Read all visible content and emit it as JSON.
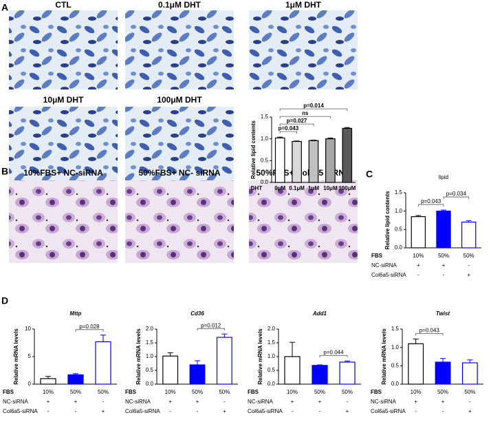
{
  "panel_labels": [
    "A",
    "B",
    "C",
    "D"
  ],
  "images": {
    "a": [
      "CTL",
      "0.1μM DHT",
      "1μM DHT",
      "10μM DHT",
      "100μM DHT"
    ],
    "b": [
      "10%FBS+ NC-siRNA",
      "50%FBS+ NC- siRNA",
      "50%FBS+ Col6a5 siRNA"
    ]
  },
  "chart_data": [
    {
      "type": "bar",
      "y_label": "Relative lipid contents",
      "x_label": "DHT",
      "categories": [
        "0μM",
        "0.1μM",
        "1μM",
        "10μM",
        "100μM"
      ],
      "values": [
        1.02,
        0.94,
        0.96,
        1.0,
        1.24
      ],
      "errors": [
        0.02,
        0.01,
        0.01,
        0.02,
        0.02
      ],
      "bar_fills": [
        "#ffffff",
        "#d9d9d9",
        "#bfbfbf",
        "#a6a6a6",
        "#595959"
      ],
      "bar_edges": [
        "#000000",
        "#000000",
        "#000000",
        "#000000",
        "#000000"
      ],
      "ylim": [
        0,
        1.5
      ],
      "yticks": [
        {
          "value": 0,
          "label": "0.0"
        },
        0.5,
        {
          "value": 1,
          "label": "1.0"
        },
        1.5
      ],
      "annotations": [
        {
          "text": "p=0.043",
          "from": 0,
          "to": 1
        },
        {
          "text": "p=0.027",
          "from": 0,
          "to": 2
        },
        {
          "text": "ns",
          "from": 0,
          "to": 3
        },
        {
          "text": "p=0.014",
          "from": 0,
          "to": 4
        }
      ]
    },
    {
      "type": "bar",
      "title": "lipid",
      "y_label": "Relative lipid contents",
      "values": [
        0.85,
        1.0,
        0.7
      ],
      "errors": [
        0.03,
        0.03,
        0.04
      ],
      "bar_fills": [
        "#ffffff",
        "#0000ff",
        "#ffffff"
      ],
      "bar_edges": [
        "#000000",
        "#0000ff",
        "#0000ff"
      ],
      "ylim": [
        0,
        1.5
      ],
      "yticks": [
        {
          "value": 0,
          "label": "0.0"
        },
        0.5,
        {
          "value": 1,
          "label": "1.0"
        },
        1.5
      ],
      "annotations": [
        {
          "text": "p=0.043",
          "from": 0,
          "to": 1
        },
        {
          "text": "p=0.034",
          "from": 1,
          "to": 2
        }
      ],
      "conditions": [
        {
          "name": "FBS",
          "values": [
            "10%",
            "50%",
            "50%"
          ]
        },
        {
          "name": "NC-siRNA",
          "values": [
            "+",
            "+",
            "-"
          ]
        },
        {
          "name": "Col6a5-siRNA",
          "values": [
            "-",
            "-",
            "+"
          ]
        }
      ]
    },
    {
      "type": "bar",
      "title": "Mttp",
      "y_label": "Relative mRNA levels",
      "values": [
        1.0,
        1.7,
        7.7
      ],
      "errors": [
        0.4,
        0.2,
        1.2
      ],
      "bar_fills": [
        "#ffffff",
        "#0000ff",
        "#ffffff"
      ],
      "bar_edges": [
        "#000000",
        "#0000ff",
        "#0000ff"
      ],
      "ylim": [
        0,
        10
      ],
      "yticks": [
        0,
        5,
        10
      ],
      "annotations": [
        {
          "text": "p=0.028",
          "from": 1,
          "to": 2
        }
      ],
      "conditions": [
        {
          "name": "FBS",
          "values": [
            "10%",
            "50%",
            "50%"
          ]
        },
        {
          "name": "NC-siRNA",
          "values": [
            "+",
            "+",
            "-"
          ]
        },
        {
          "name": "Col6a5-siRNA",
          "values": [
            "-",
            "-",
            "+"
          ]
        }
      ]
    },
    {
      "type": "bar",
      "title": "Cd36",
      "y_label": "Relative mRNA levels",
      "values": [
        1.02,
        0.7,
        1.7
      ],
      "errors": [
        0.12,
        0.15,
        0.12
      ],
      "bar_fills": [
        "#ffffff",
        "#0000ff",
        "#ffffff"
      ],
      "bar_edges": [
        "#000000",
        "#0000ff",
        "#0000ff"
      ],
      "ylim": [
        0,
        2
      ],
      "yticks": [
        {
          "value": 0,
          "label": "0.0"
        },
        0.5,
        {
          "value": 1,
          "label": "1.0"
        },
        1.5,
        {
          "value": 2,
          "label": "2.0"
        }
      ],
      "annotations": [
        {
          "text": "p=0.012",
          "from": 1,
          "to": 2
        }
      ],
      "conditions": [
        {
          "name": "FBS",
          "values": [
            "10%",
            "50%",
            "50%"
          ]
        },
        {
          "name": "NC-siRNA",
          "values": [
            "+",
            "+",
            "-"
          ]
        },
        {
          "name": "Col6a5-siRNA",
          "values": [
            "-",
            "-",
            "+"
          ]
        }
      ]
    },
    {
      "type": "bar",
      "title": "Add1",
      "y_label": "Relative mRNA levels",
      "values": [
        1.0,
        0.68,
        0.8
      ],
      "errors": [
        0.52,
        0.02,
        0.04
      ],
      "bar_fills": [
        "#ffffff",
        "#0000ff",
        "#ffffff"
      ],
      "bar_edges": [
        "#000000",
        "#0000ff",
        "#0000ff"
      ],
      "ylim": [
        0,
        2
      ],
      "yticks": [
        {
          "value": 0,
          "label": "0.0"
        },
        0.5,
        {
          "value": 1,
          "label": "1.0"
        },
        1.5,
        {
          "value": 2,
          "label": "2.0"
        }
      ],
      "annotations": [
        {
          "text": "p=0.044",
          "from": 1,
          "to": 2
        }
      ],
      "conditions": [
        {
          "name": "FBS",
          "values": [
            "10%",
            "50%",
            "50%"
          ]
        },
        {
          "name": "NC-siRNA",
          "values": [
            "+",
            "+",
            "-"
          ]
        },
        {
          "name": "Col6a5-siRNA",
          "values": [
            "-",
            "-",
            "+"
          ]
        }
      ]
    },
    {
      "type": "bar",
      "title": "Twist",
      "y_label": "Relative mRNA levels",
      "values": [
        1.1,
        0.6,
        0.58
      ],
      "errors": [
        0.13,
        0.1,
        0.08
      ],
      "bar_fills": [
        "#ffffff",
        "#0000ff",
        "#ffffff"
      ],
      "bar_edges": [
        "#000000",
        "#0000ff",
        "#0000ff"
      ],
      "ylim": [
        0,
        1.5
      ],
      "yticks": [
        {
          "value": 0,
          "label": "0.0"
        },
        0.5,
        {
          "value": 1,
          "label": "1.0"
        },
        1.5
      ],
      "annotations": [
        {
          "text": "p=0.043",
          "from": 0,
          "to": 1
        }
      ],
      "conditions": [
        {
          "name": "FBS",
          "values": [
            "10%",
            "50%",
            "50%"
          ]
        },
        {
          "name": "NC-siRNA",
          "values": [
            "+",
            "+",
            "-"
          ]
        },
        {
          "name": "Col6a5-siRNA",
          "values": [
            "-",
            "-",
            "+"
          ]
        }
      ]
    }
  ]
}
